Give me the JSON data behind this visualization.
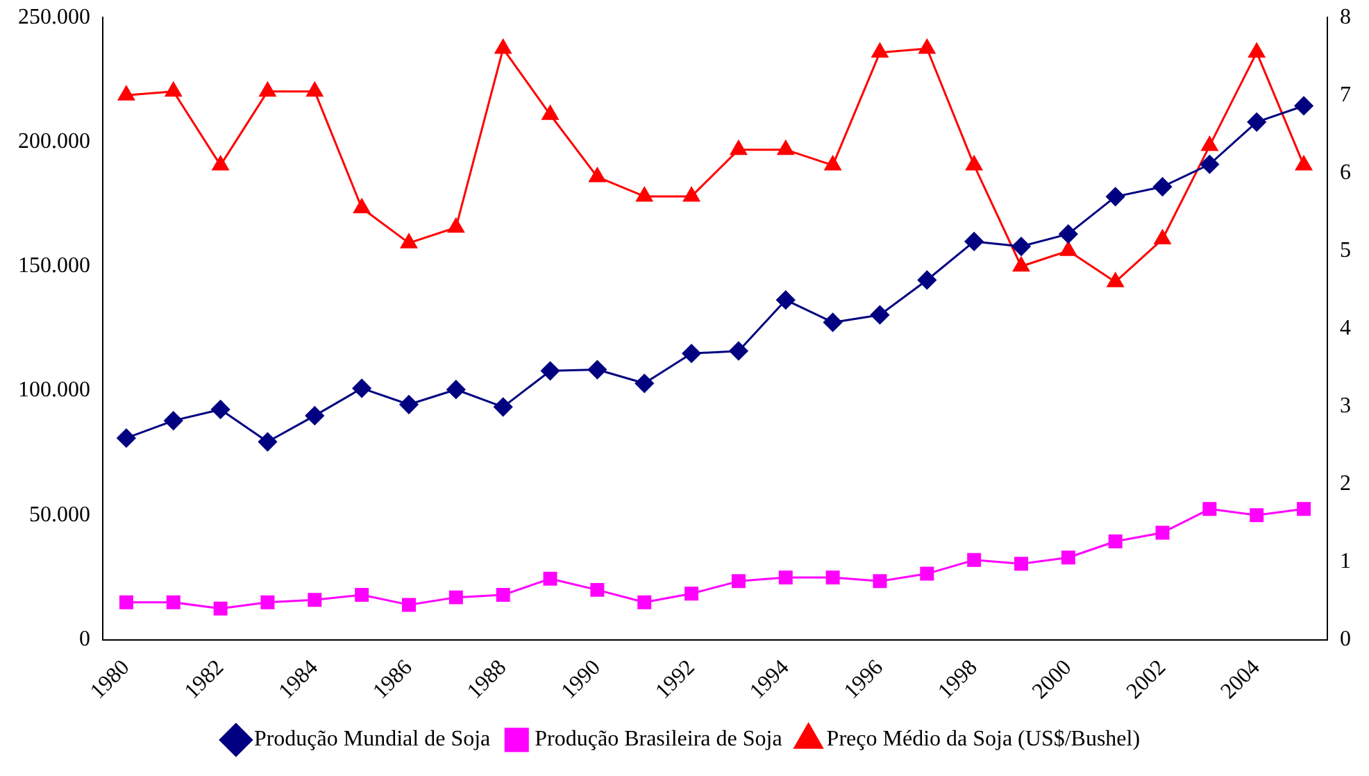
{
  "chart_data": {
    "type": "line",
    "categories": [
      "1980",
      null,
      "1982",
      null,
      "1984",
      null,
      "1986",
      null,
      "1988",
      null,
      "1990",
      null,
      "1992",
      null,
      "1994",
      null,
      "1996",
      null,
      "1998",
      null,
      "2000",
      null,
      "2002",
      null,
      "2004",
      null
    ],
    "series": [
      {
        "name": "Produção Mundial de Soja",
        "color": "#000080",
        "marker": "diamond",
        "values": [
          81000,
          88000,
          92500,
          79500,
          90000,
          101000,
          94500,
          100500,
          93500,
          108000,
          108500,
          103000,
          115000,
          116000,
          136500,
          127500,
          130500,
          144500,
          160000,
          158000,
          163000,
          178000,
          182000,
          191000,
          208000,
          214500
        ]
      },
      {
        "name": "Produção Brasileira de Soja",
        "color": "#ff00ff",
        "marker": "square",
        "values": [
          15000,
          15000,
          12500,
          15000,
          16000,
          18000,
          14000,
          17000,
          18000,
          24500,
          20000,
          15000,
          18500,
          23500,
          25000,
          25000,
          23500,
          26500,
          32000,
          30500,
          33000,
          39500,
          43000,
          52500,
          50000,
          52500
        ]
      },
      {
        "name": "Preço Médio da Soja (US$/Bushel)",
        "color": "#ff0000",
        "marker": "triangle",
        "axis": "y2",
        "values": [
          7.0,
          7.05,
          6.1,
          7.05,
          7.05,
          5.55,
          5.1,
          5.3,
          7.6,
          6.75,
          5.95,
          5.7,
          5.7,
          6.3,
          6.3,
          6.1,
          7.55,
          7.6,
          6.1,
          4.8,
          5.0,
          4.6,
          5.15,
          6.35,
          7.55,
          6.1
        ]
      }
    ],
    "ylim": [
      0,
      250000
    ],
    "yticks": [
      {
        "value": 0,
        "label": "0"
      },
      {
        "value": 50000,
        "label": "50.000"
      },
      {
        "value": 100000,
        "label": "100.000"
      },
      {
        "value": 150000,
        "label": "150.000"
      },
      {
        "value": 200000,
        "label": "200.000"
      },
      {
        "value": 250000,
        "label": "250.000"
      }
    ],
    "y2lim": [
      0,
      8
    ],
    "y2ticks": [
      0,
      1,
      2,
      3,
      4,
      5,
      6,
      7,
      8
    ],
    "grid": false,
    "legend": "bottom",
    "line_style": "solid"
  }
}
